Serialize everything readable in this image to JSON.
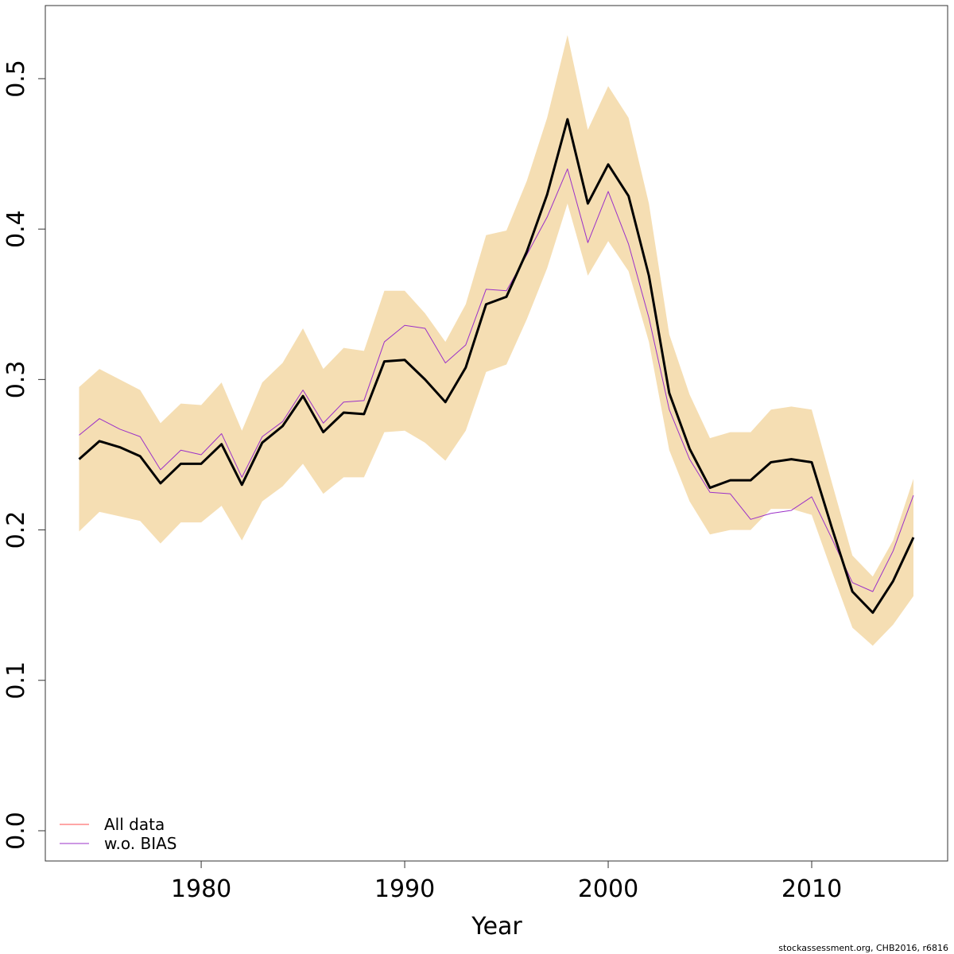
{
  "chart_data": {
    "type": "line",
    "x_label": "Year",
    "footer": "stockassessment.org, CHB2016, r6816",
    "x": [
      1974,
      1975,
      1976,
      1977,
      1978,
      1979,
      1980,
      1981,
      1982,
      1983,
      1984,
      1985,
      1986,
      1987,
      1988,
      1989,
      1990,
      1991,
      1992,
      1993,
      1994,
      1995,
      1996,
      1997,
      1998,
      1999,
      2000,
      2001,
      2002,
      2003,
      2004,
      2005,
      2006,
      2007,
      2008,
      2009,
      2010,
      2011,
      2012,
      2013,
      2014,
      2015
    ],
    "band": {
      "color": "#f5deb3",
      "upper": [
        0.295,
        0.307,
        0.3,
        0.293,
        0.271,
        0.284,
        0.283,
        0.298,
        0.266,
        0.298,
        0.311,
        0.334,
        0.307,
        0.321,
        0.319,
        0.359,
        0.359,
        0.344,
        0.325,
        0.35,
        0.396,
        0.399,
        0.432,
        0.474,
        0.529,
        0.466,
        0.495,
        0.474,
        0.417,
        0.33,
        0.29,
        0.261,
        0.265,
        0.265,
        0.28,
        0.282,
        0.28,
        0.231,
        0.183,
        0.169,
        0.193,
        0.234
      ],
      "lower": [
        0.199,
        0.212,
        0.209,
        0.206,
        0.191,
        0.205,
        0.205,
        0.216,
        0.193,
        0.219,
        0.229,
        0.244,
        0.224,
        0.235,
        0.235,
        0.265,
        0.266,
        0.258,
        0.246,
        0.266,
        0.305,
        0.31,
        0.34,
        0.374,
        0.417,
        0.369,
        0.392,
        0.372,
        0.325,
        0.253,
        0.219,
        0.197,
        0.2,
        0.2,
        0.214,
        0.214,
        0.21,
        0.172,
        0.135,
        0.123,
        0.137,
        0.156
      ]
    },
    "series": [
      {
        "name": "All data",
        "color": "#ff4d4d",
        "line_color": "#000000",
        "values": [
          0.247,
          0.259,
          0.255,
          0.249,
          0.231,
          0.244,
          0.244,
          0.257,
          0.23,
          0.258,
          0.269,
          0.289,
          0.265,
          0.278,
          0.277,
          0.312,
          0.313,
          0.3,
          0.285,
          0.308,
          0.35,
          0.355,
          0.385,
          0.423,
          0.473,
          0.417,
          0.443,
          0.422,
          0.369,
          0.291,
          0.254,
          0.228,
          0.233,
          0.233,
          0.245,
          0.247,
          0.245,
          0.201,
          0.159,
          0.145,
          0.166,
          0.195
        ]
      },
      {
        "name": "w.o. BIAS",
        "color": "#9b30c8",
        "values": [
          0.263,
          0.274,
          0.267,
          0.262,
          0.24,
          0.253,
          0.25,
          0.264,
          0.235,
          0.262,
          0.272,
          0.293,
          0.271,
          0.285,
          0.286,
          0.325,
          0.336,
          0.334,
          0.311,
          0.323,
          0.36,
          0.359,
          0.383,
          0.408,
          0.44,
          0.391,
          0.425,
          0.39,
          0.341,
          0.28,
          0.247,
          0.225,
          0.224,
          0.207,
          0.211,
          0.213,
          0.222,
          0.194,
          0.165,
          0.159,
          0.186,
          0.223
        ]
      }
    ],
    "xlim": [
      1972.34,
      2016.68
    ],
    "ylim": [
      -0.0201,
      0.5486
    ],
    "xticks": [
      1980,
      1990,
      2000,
      2010
    ],
    "yticks": [
      {
        "value": 0,
        "label": "0.0"
      },
      0.1,
      0.2,
      0.3,
      0.4,
      0.5
    ],
    "legend": "bottom-left"
  }
}
